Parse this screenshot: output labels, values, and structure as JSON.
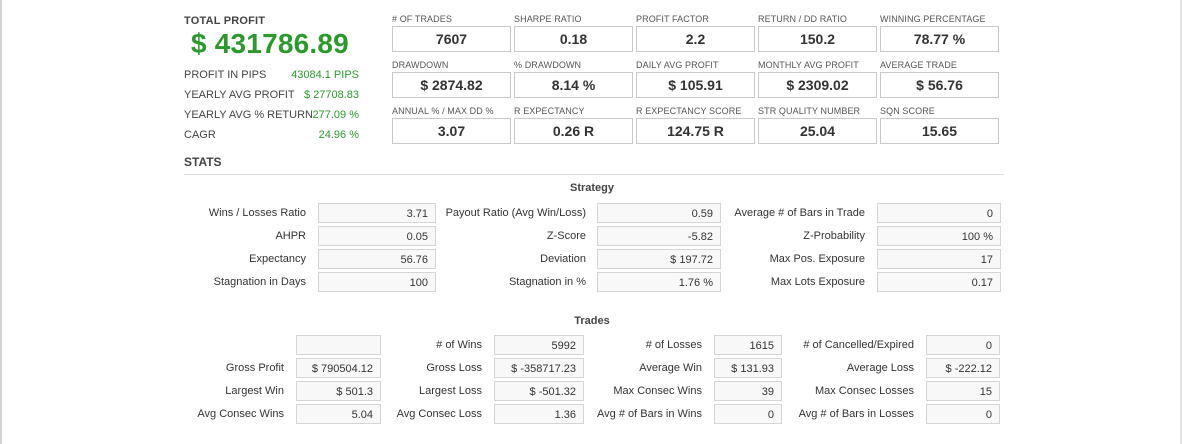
{
  "summary": {
    "total_profit_label": "TOTAL PROFIT",
    "total_profit_value": "$ 431786.89",
    "rows": [
      {
        "label": "PROFIT IN PIPS",
        "value": "43084.1 PIPS"
      },
      {
        "label": "YEARLY AVG PROFIT",
        "value": "$ 27708.83"
      },
      {
        "label": "YEARLY AVG % RETURN",
        "value": "277.09 %"
      },
      {
        "label": "CAGR",
        "value": "24.96 %"
      }
    ]
  },
  "metrics": [
    {
      "label": "# OF TRADES",
      "value": "7607"
    },
    {
      "label": "SHARPE RATIO",
      "value": "0.18"
    },
    {
      "label": "PROFIT FACTOR",
      "value": "2.2"
    },
    {
      "label": "RETURN / DD RATIO",
      "value": "150.2"
    },
    {
      "label": "WINNING PERCENTAGE",
      "value": "78.77 %"
    },
    {
      "label": "DRAWDOWN",
      "value": "$ 2874.82"
    },
    {
      "label": "% DRAWDOWN",
      "value": "8.14 %"
    },
    {
      "label": "DAILY AVG PROFIT",
      "value": "$ 105.91"
    },
    {
      "label": "MONTHLY AVG PROFIT",
      "value": "$ 2309.02"
    },
    {
      "label": "AVERAGE TRADE",
      "value": "$ 56.76"
    },
    {
      "label": "ANNUAL % / MAX DD %",
      "value": "3.07"
    },
    {
      "label": "R EXPECTANCY",
      "value": "0.26 R"
    },
    {
      "label": "R EXPECTANCY SCORE",
      "value": "124.75 R"
    },
    {
      "label": "STR QUALITY NUMBER",
      "value": "25.04"
    },
    {
      "label": "SQN SCORE",
      "value": "15.65"
    }
  ],
  "stats_title": "STATS",
  "strategy": {
    "title": "Strategy",
    "rows": [
      [
        {
          "label": "Wins / Losses Ratio",
          "value": "3.71"
        },
        {
          "label": "Payout Ratio (Avg Win/Loss)",
          "value": "0.59"
        },
        {
          "label": "Average # of Bars in Trade",
          "value": "0"
        }
      ],
      [
        {
          "label": "AHPR",
          "value": "0.05"
        },
        {
          "label": "Z-Score",
          "value": "-5.82"
        },
        {
          "label": "Z-Probability",
          "value": "100 %"
        }
      ],
      [
        {
          "label": "Expectancy",
          "value": "56.76"
        },
        {
          "label": "Deviation",
          "value": "$ 197.72"
        },
        {
          "label": "Max Pos. Exposure",
          "value": "17"
        }
      ],
      [
        {
          "label": "Stagnation in Days",
          "value": "100"
        },
        {
          "label": "Stagnation in %",
          "value": "1.76 %"
        },
        {
          "label": "Max Lots Exposure",
          "value": "0.17"
        }
      ]
    ]
  },
  "trades": {
    "title": "Trades",
    "rows": [
      [
        {
          "label": "",
          "value": ""
        },
        {
          "label": "# of Wins",
          "value": "5992"
        },
        {
          "label": "# of Losses",
          "value": "1615"
        },
        {
          "label": "# of Cancelled/Expired",
          "value": "0"
        }
      ],
      [
        {
          "label": "Gross Profit",
          "value": "$ 790504.12"
        },
        {
          "label": "Gross Loss",
          "value": "$ -358717.23"
        },
        {
          "label": "Average Win",
          "value": "$ 131.93"
        },
        {
          "label": "Average Loss",
          "value": "$ -222.12"
        }
      ],
      [
        {
          "label": "Largest Win",
          "value": "$ 501.3"
        },
        {
          "label": "Largest Loss",
          "value": "$ -501.32"
        },
        {
          "label": "Max Consec Wins",
          "value": "39"
        },
        {
          "label": "Max Consec Losses",
          "value": "15"
        }
      ],
      [
        {
          "label": "Avg Consec Wins",
          "value": "5.04"
        },
        {
          "label": "Avg Consec Loss",
          "value": "1.36"
        },
        {
          "label": "Avg # of Bars in Wins",
          "value": "0"
        },
        {
          "label": "Avg # of Bars in Losses",
          "value": "0"
        }
      ]
    ]
  }
}
